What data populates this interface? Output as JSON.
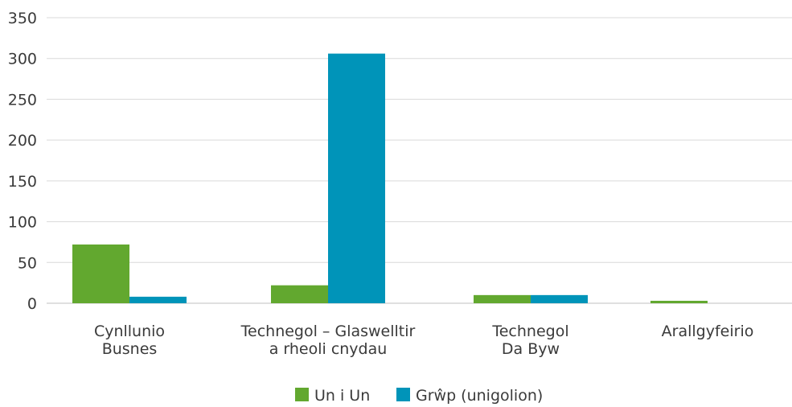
{
  "chart_data": {
    "type": "bar",
    "categories": [
      [
        "Cynllunio",
        "Busnes"
      ],
      [
        "Technegol – Glaswelltir",
        "a rheoli cnydau"
      ],
      [
        "Technegol",
        "Da Byw"
      ],
      [
        "Arallgyfeirio"
      ]
    ],
    "series": [
      {
        "name": "Un i Un",
        "values": [
          72,
          22,
          10,
          3
        ],
        "color": "#62a82f"
      },
      {
        "name": "Grŵp (unigolion)",
        "values": [
          8,
          306,
          10,
          0
        ],
        "color": "#0094b9"
      }
    ],
    "ylim": [
      0,
      350
    ],
    "yticks": [
      0,
      50,
      100,
      150,
      200,
      250,
      300,
      350
    ],
    "grid": true,
    "legend_position": "bottom-center"
  }
}
